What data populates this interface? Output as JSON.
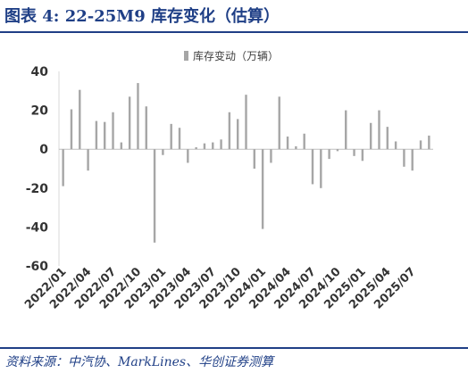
{
  "figure_title": "图表 4:  22-25M9 库存变化（估算）",
  "source_text": "资料来源：中汽协、MarkLines、华创证券测算",
  "chart_data": {
    "type": "bar",
    "title": "",
    "xlabel": "",
    "ylabel": "",
    "ylim": [
      -60,
      40
    ],
    "yticks": [
      40,
      20,
      0,
      -20,
      -40,
      -60
    ],
    "legend_position": "top-center",
    "grid": false,
    "bar_color": "#a6a6a6",
    "x_tick_labels": [
      "2022/01",
      "2022/04",
      "2022/07",
      "2022/10",
      "2023/01",
      "2023/04",
      "2023/07",
      "2023/10",
      "2024/01",
      "2024/04",
      "2024/07",
      "2024/10",
      "2025/01",
      "2025/04",
      "2025/07"
    ],
    "categories": [
      "2022/01",
      "2022/02",
      "2022/03",
      "2022/04",
      "2022/05",
      "2022/06",
      "2022/07",
      "2022/08",
      "2022/09",
      "2022/10",
      "2022/11",
      "2022/12",
      "2023/01",
      "2023/02",
      "2023/03",
      "2023/04",
      "2023/05",
      "2023/06",
      "2023/07",
      "2023/08",
      "2023/09",
      "2023/10",
      "2023/11",
      "2023/12",
      "2024/01",
      "2024/02",
      "2024/03",
      "2024/04",
      "2024/05",
      "2024/06",
      "2024/07",
      "2024/08",
      "2024/09",
      "2024/10",
      "2024/11",
      "2024/12",
      "2025/01",
      "2025/02",
      "2025/03",
      "2025/04",
      "2025/05",
      "2025/06",
      "2025/07",
      "2025/08",
      "2025/09"
    ],
    "series": [
      {
        "name": "库存变动（万辆）",
        "values": [
          -19,
          20.5,
          30.5,
          -11,
          14.5,
          14,
          19,
          3.5,
          27,
          34,
          22,
          -48,
          -3,
          13,
          11,
          -7,
          1,
          3,
          3.5,
          5,
          19,
          15.5,
          28,
          -10,
          -41,
          -7,
          27,
          6.5,
          1.5,
          8,
          -18,
          -20,
          -5,
          -1,
          20,
          -3.5,
          -6,
          13.5,
          20,
          11.5,
          4,
          -9,
          -11,
          4.5,
          7
        ]
      }
    ]
  }
}
